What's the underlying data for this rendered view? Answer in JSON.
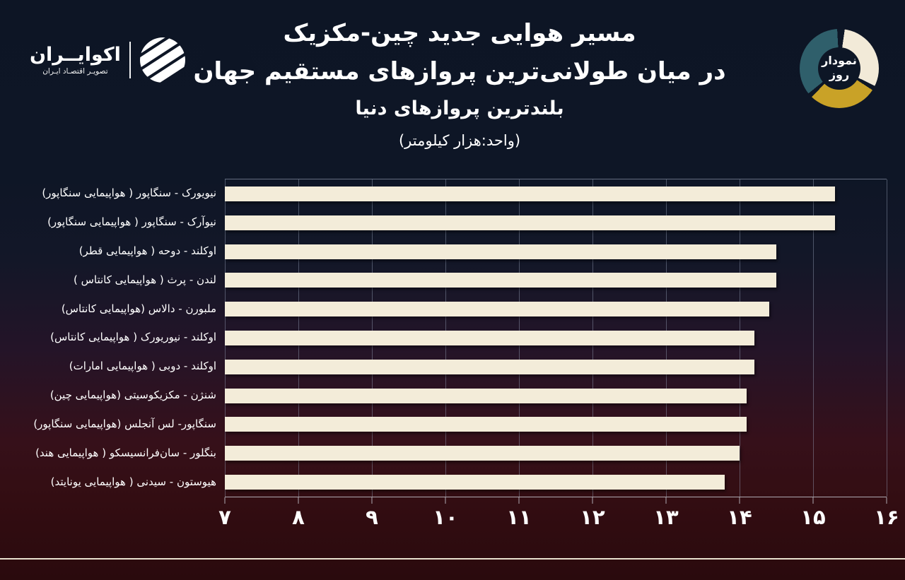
{
  "brand": {
    "name": "اکوایــران",
    "tagline": "تصویـر اقتصـاد ایـران"
  },
  "badge": {
    "line1": "نمودار",
    "line2": "روز",
    "hole_color": "#0d1626",
    "segments": [
      {
        "name": "cream",
        "color": "#f2ead8",
        "from": 8,
        "to": 116
      },
      {
        "name": "gold",
        "color": "#c9a227",
        "from": 123,
        "to": 224
      },
      {
        "name": "teal",
        "color": "#2f5f6b",
        "from": 231,
        "to": 357
      }
    ]
  },
  "title": {
    "line1": "مسیر هوایی  جدید چین-مکزیک",
    "line2": "در میان طولانی‌ترین پروازهای مستقیم جهان",
    "line3": "بلندترین پروازهای دنیا",
    "line4": "(واحد:هزار کیلومتر)"
  },
  "chart_data": {
    "type": "bar",
    "orientation": "horizontal",
    "title": "بلندترین پروازهای دنیا",
    "unit_label": "(واحد:هزار کیلومتر)",
    "xlim": [
      7,
      16
    ],
    "grid": true,
    "bar_color": "#f3ecd9",
    "categories": [
      "نیویورک - سنگاپور ( هواپیمایی سنگاپور)",
      "نیوآرک - سنگاپور ( هواپیمایی سنگاپور)",
      "اوکلند - دوحه ( هواپیمایی قطر)",
      "لندن - پرث ( هواپیمایی کانتاس )",
      "ملبورن - دالاس (هواپیمایی کانتاس)",
      "اوکلند - نیوریورک ( هواپیمایی کانتاس)",
      "اوکلند - دوبی ( هواپیمایی امارات)",
      "شنژن - مکزیکوسیتی (هواپیمایی چین)",
      "سنگاپور- لس آنجلس (هواپیمایی سنگاپور)",
      "بنگلور - سان‌فرانسیسکو ( هواپیمایی هند)",
      "هیوستون - سیدنی ( هواپیمایی یونایتد)"
    ],
    "values": [
      15.3,
      15.3,
      14.5,
      14.5,
      14.4,
      14.2,
      14.2,
      14.1,
      14.1,
      14.0,
      13.8
    ],
    "x_ticks": [
      {
        "label": "۷",
        "value": 7
      },
      {
        "label": "۸",
        "value": 8
      },
      {
        "label": "۹",
        "value": 9
      },
      {
        "label": "۱۰",
        "value": 10
      },
      {
        "label": "۱۱",
        "value": 11
      },
      {
        "label": "۱۲",
        "value": 12
      },
      {
        "label": "۱۳",
        "value": 13
      },
      {
        "label": "۱۴",
        "value": 14
      },
      {
        "label": "۱۵",
        "value": 15
      },
      {
        "label": "۱۶",
        "value": 16
      }
    ]
  }
}
